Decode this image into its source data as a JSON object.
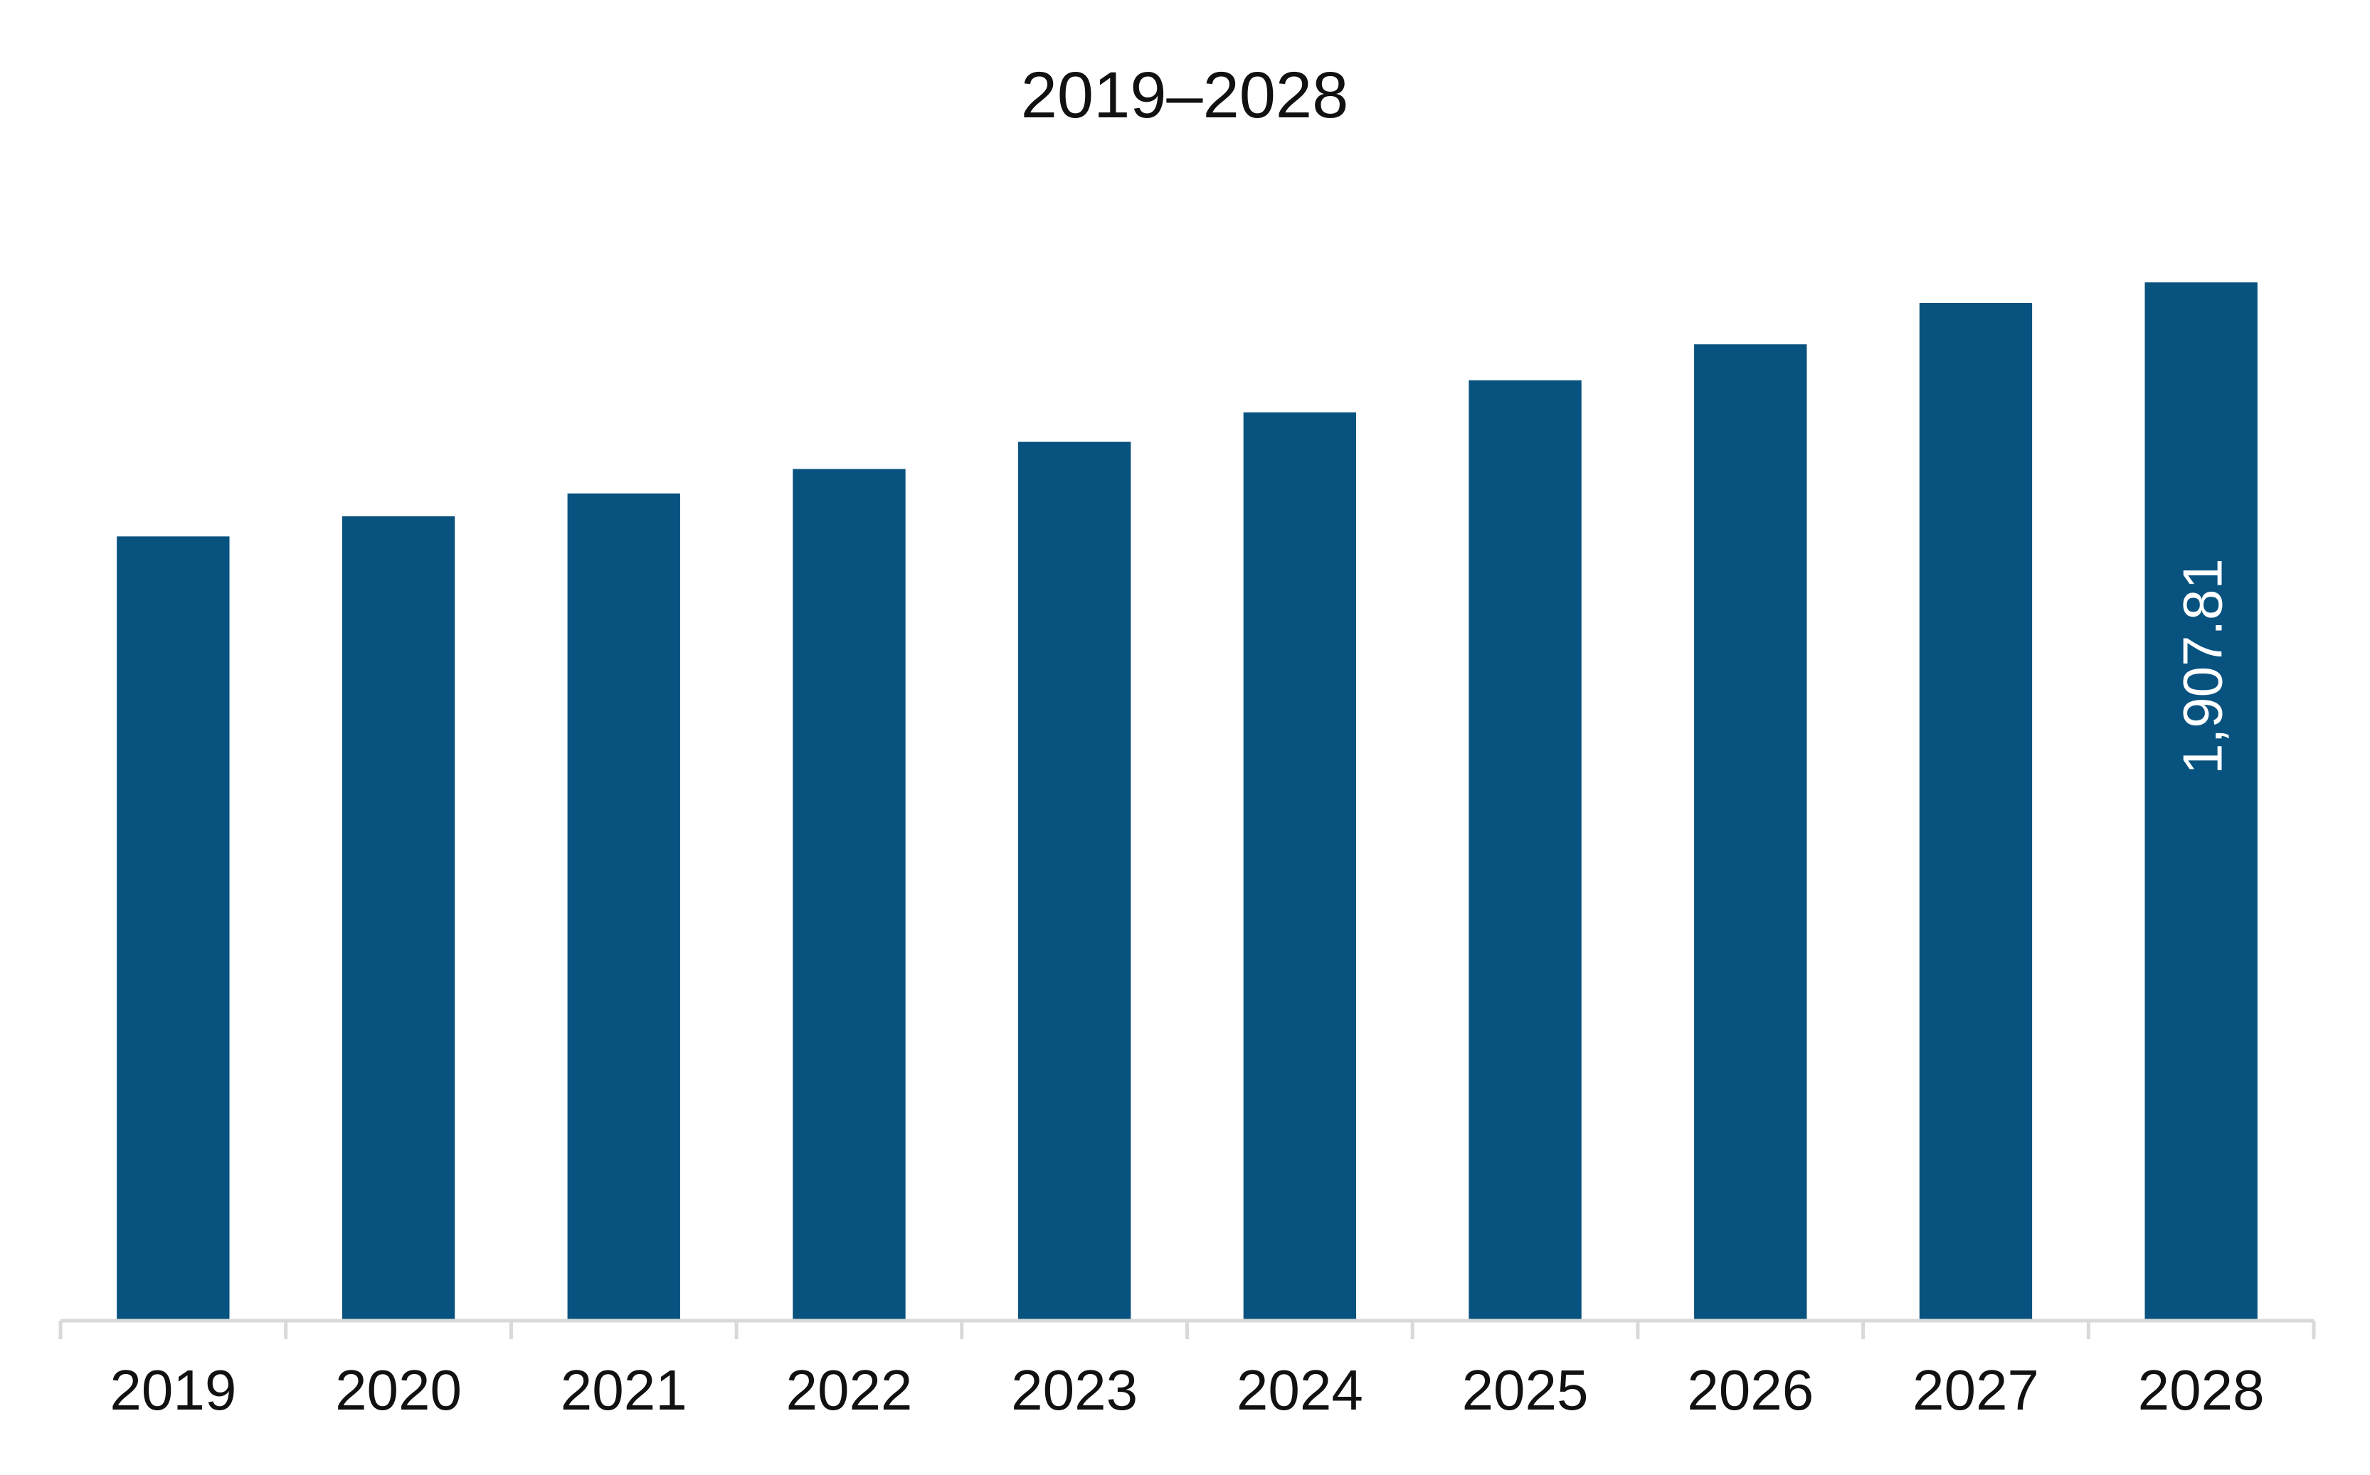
{
  "chart_data": {
    "type": "bar",
    "title": "2019–2028",
    "xlabel": "",
    "ylabel": "",
    "categories": [
      "2019",
      "2020",
      "2021",
      "2022",
      "2023",
      "2024",
      "2025",
      "2026",
      "2027",
      "2028"
    ],
    "series": [
      {
        "values": [
          1441,
          1478,
          1520,
          1565,
          1615,
          1669,
          1728,
          1794,
          1870,
          1907.81
        ],
        "color": "#08527f"
      }
    ],
    "data_labels": [
      "",
      "",
      "",
      "",
      "",
      "",
      "",
      "",
      "",
      "1,907.81"
    ],
    "ylim": [
      0,
      2100
    ],
    "grid": false,
    "legend": "none",
    "colors": {
      "bar": "#08527f",
      "axis": "#d9d9d9",
      "text": "#111111",
      "data_label": "#ffffff"
    }
  }
}
